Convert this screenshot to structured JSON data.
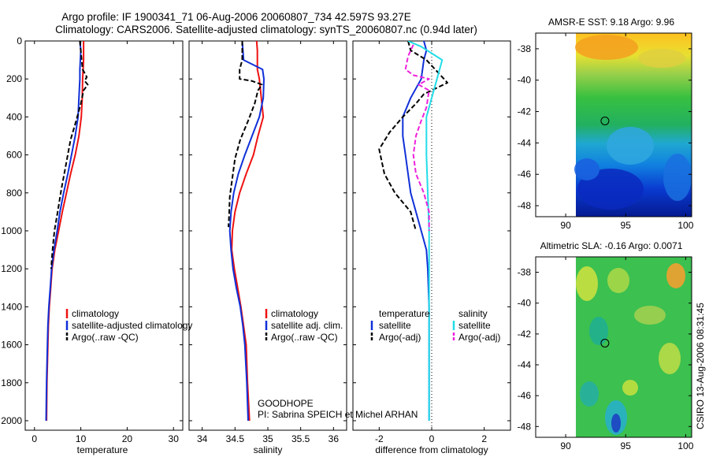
{
  "title": {
    "line1": "Argo profile: IF 1900341_71 06-Aug-2006 20060807_734 42.597S 93.27E",
    "line2": "Climatology: CARS2006. Satellite-adjusted climatology: synTS_20060807.nc (0.94d later)"
  },
  "colors": {
    "red": "#ee1111",
    "blue": "#1030d8",
    "black": "#000000",
    "cyan": "#22dde8",
    "magenta": "#ee22dd"
  },
  "chart_data": [
    {
      "type": "line",
      "name": "temperature-profile",
      "xlabel": "temperature",
      "xlim": [
        -2,
        32
      ],
      "ylim": [
        0,
        2050
      ],
      "xticks": [
        "0",
        "10",
        "20",
        "30"
      ],
      "yticks": [
        "0",
        "200",
        "400",
        "600",
        "800",
        "1000",
        "1200",
        "1400",
        "1600",
        "1800",
        "2000"
      ],
      "legend": [
        "climatology",
        "satellite-adjusted climatology",
        "Argo(..raw -QC)"
      ],
      "series": [
        {
          "name": "climatology",
          "color": "red",
          "dash": false,
          "points": [
            [
              10.6,
              0
            ],
            [
              10.6,
              50
            ],
            [
              10.6,
              100
            ],
            [
              10.5,
              150
            ],
            [
              10.4,
              200
            ],
            [
              10.3,
              300
            ],
            [
              10.1,
              400
            ],
            [
              9.6,
              500
            ],
            [
              8.8,
              600
            ],
            [
              7.8,
              700
            ],
            [
              6.9,
              800
            ],
            [
              6.0,
              900
            ],
            [
              5.2,
              1000
            ],
            [
              4.4,
              1100
            ],
            [
              3.8,
              1200
            ],
            [
              3.5,
              1300
            ],
            [
              3.2,
              1400
            ],
            [
              3.0,
              1500
            ],
            [
              2.9,
              1600
            ],
            [
              2.7,
              1800
            ],
            [
              2.6,
              2000
            ]
          ]
        },
        {
          "name": "satellite-adjusted climatology",
          "color": "blue",
          "dash": false,
          "points": [
            [
              9.8,
              0
            ],
            [
              10.0,
              50
            ],
            [
              9.9,
              100
            ],
            [
              9.8,
              150
            ],
            [
              9.8,
              200
            ],
            [
              9.6,
              300
            ],
            [
              9.4,
              400
            ],
            [
              8.8,
              500
            ],
            [
              8.0,
              600
            ],
            [
              7.2,
              700
            ],
            [
              6.3,
              800
            ],
            [
              5.5,
              900
            ],
            [
              4.9,
              1000
            ],
            [
              4.2,
              1100
            ],
            [
              3.7,
              1200
            ],
            [
              3.4,
              1300
            ],
            [
              3.1,
              1400
            ],
            [
              2.9,
              1500
            ],
            [
              2.8,
              1600
            ],
            [
              2.6,
              1800
            ],
            [
              2.5,
              2000
            ]
          ]
        },
        {
          "name": "Argo(..raw -QC)",
          "color": "black",
          "dash": true,
          "points": [
            [
              9.8,
              0
            ],
            [
              10.1,
              80
            ],
            [
              10.4,
              150
            ],
            [
              11.3,
              190
            ],
            [
              10.8,
              210
            ],
            [
              11.5,
              230
            ],
            [
              10.6,
              260
            ],
            [
              10.0,
              330
            ],
            [
              9.0,
              420
            ],
            [
              7.8,
              520
            ],
            [
              6.8,
              650
            ],
            [
              5.8,
              780
            ],
            [
              5.0,
              900
            ],
            [
              4.3,
              1000
            ],
            [
              3.9,
              1100
            ],
            [
              3.6,
              1200
            ]
          ]
        }
      ]
    },
    {
      "type": "line",
      "name": "salinity-profile",
      "xlabel": "salinity",
      "xlim": [
        33.8,
        36.2
      ],
      "ylim": [
        0,
        2050
      ],
      "xticks": [
        "34",
        "34.5",
        "35",
        "35.5",
        "36"
      ],
      "legend": [
        "climatology",
        "satellite adj. clim.",
        "Argo(..raw -QC)"
      ],
      "annotation": [
        "GOODHOPE",
        "PI: Sabrina SPEICH et Michel ARHAN"
      ],
      "series": [
        {
          "name": "climatology",
          "color": "red",
          "dash": false,
          "points": [
            [
              34.83,
              0
            ],
            [
              34.84,
              50
            ],
            [
              34.84,
              100
            ],
            [
              34.84,
              150
            ],
            [
              34.87,
              200
            ],
            [
              34.9,
              300
            ],
            [
              34.93,
              400
            ],
            [
              34.85,
              500
            ],
            [
              34.78,
              600
            ],
            [
              34.67,
              700
            ],
            [
              34.57,
              800
            ],
            [
              34.5,
              900
            ],
            [
              34.46,
              1000
            ],
            [
              34.45,
              1100
            ],
            [
              34.49,
              1200
            ],
            [
              34.54,
              1300
            ],
            [
              34.59,
              1400
            ],
            [
              34.63,
              1500
            ],
            [
              34.67,
              1600
            ],
            [
              34.69,
              1800
            ],
            [
              34.72,
              2000
            ]
          ]
        },
        {
          "name": "satellite adj. clim.",
          "color": "blue",
          "dash": false,
          "points": [
            [
              34.61,
              0
            ],
            [
              34.63,
              100
            ],
            [
              34.92,
              150
            ],
            [
              34.94,
              200
            ],
            [
              34.93,
              300
            ],
            [
              34.87,
              400
            ],
            [
              34.76,
              500
            ],
            [
              34.65,
              600
            ],
            [
              34.55,
              700
            ],
            [
              34.48,
              800
            ],
            [
              34.44,
              900
            ],
            [
              34.42,
              1000
            ],
            [
              34.44,
              1100
            ],
            [
              34.47,
              1200
            ],
            [
              34.52,
              1300
            ],
            [
              34.58,
              1400
            ],
            [
              34.62,
              1500
            ],
            [
              34.65,
              1600
            ],
            [
              34.68,
              1800
            ],
            [
              34.7,
              2000
            ]
          ]
        },
        {
          "name": "Argo(..raw -QC)",
          "color": "black",
          "dash": true,
          "points": [
            [
              34.61,
              0
            ],
            [
              34.61,
              100
            ],
            [
              34.57,
              150
            ],
            [
              34.57,
              200
            ],
            [
              34.75,
              210
            ],
            [
              34.91,
              230
            ],
            [
              34.85,
              260
            ],
            [
              34.8,
              330
            ],
            [
              34.7,
              420
            ],
            [
              34.58,
              520
            ],
            [
              34.5,
              620
            ],
            [
              34.46,
              720
            ],
            [
              34.42,
              820
            ],
            [
              34.41,
              920
            ],
            [
              34.4,
              980
            ]
          ]
        }
      ]
    },
    {
      "type": "line",
      "name": "difference-profile",
      "xlabel": "difference from climatology",
      "xlim": [
        -3,
        3
      ],
      "ylim": [
        0,
        2050
      ],
      "xticks": [
        "-2",
        "0",
        "2"
      ],
      "legend_left": [
        "temperature",
        "satellite",
        "Argo(-adj)"
      ],
      "legend_right": [
        "salinity",
        "satellite",
        "Argo(-adj)"
      ],
      "series": [
        {
          "name": "temperature satellite",
          "color": "blue",
          "dash": false,
          "points": [
            [
              -0.3,
              0
            ],
            [
              -0.2,
              50
            ],
            [
              -0.3,
              100
            ],
            [
              -0.4,
              200
            ],
            [
              -0.8,
              300
            ],
            [
              -1.1,
              400
            ],
            [
              -1.1,
              500
            ],
            [
              -1.0,
              600
            ],
            [
              -0.9,
              700
            ],
            [
              -0.8,
              800
            ],
            [
              -0.6,
              900
            ],
            [
              -0.4,
              1000
            ],
            [
              -0.2,
              1100
            ],
            [
              -0.15,
              1200
            ],
            [
              -0.1,
              1400
            ],
            [
              -0.1,
              1600
            ],
            [
              -0.1,
              1800
            ],
            [
              -0.1,
              2000
            ]
          ]
        },
        {
          "name": "temperature Argo(-adj)",
          "color": "black",
          "dash": true,
          "points": [
            [
              -0.9,
              0
            ],
            [
              -0.8,
              50
            ],
            [
              -0.2,
              100
            ],
            [
              0.6,
              220
            ],
            [
              -0.3,
              280
            ],
            [
              -0.6,
              330
            ],
            [
              -1.1,
              400
            ],
            [
              -1.6,
              480
            ],
            [
              -2.0,
              570
            ],
            [
              -1.8,
              700
            ],
            [
              -1.4,
              800
            ],
            [
              -0.8,
              900
            ],
            [
              -0.6,
              1000
            ]
          ]
        },
        {
          "name": "salinity satellite",
          "color": "cyan",
          "dash": false,
          "points": [
            [
              -0.9,
              0
            ],
            [
              -0.4,
              30
            ],
            [
              0.4,
              100
            ],
            [
              0.2,
              200
            ],
            [
              0.0,
              300
            ],
            [
              -0.2,
              400
            ],
            [
              -0.2,
              600
            ],
            [
              -0.15,
              800
            ],
            [
              -0.1,
              1000
            ],
            [
              -0.1,
              1200
            ],
            [
              -0.1,
              1400
            ],
            [
              -0.1,
              1600
            ],
            [
              -0.1,
              1800
            ],
            [
              -0.1,
              2000
            ]
          ]
        },
        {
          "name": "salinity Argo(-adj)",
          "color": "magenta",
          "dash": true,
          "points": [
            [
              -0.7,
              20
            ],
            [
              -0.9,
              80
            ],
            [
              -1.0,
              150
            ],
            [
              -0.7,
              180
            ],
            [
              -0.1,
              200
            ],
            [
              -0.5,
              230
            ],
            [
              -0.1,
              260
            ],
            [
              -0.2,
              350
            ],
            [
              -0.4,
              420
            ],
            [
              -0.6,
              500
            ],
            [
              -0.7,
              600
            ],
            [
              -0.6,
              700
            ],
            [
              -0.3,
              800
            ],
            [
              -0.1,
              900
            ],
            [
              -0.1,
              1000
            ]
          ]
        }
      ]
    },
    {
      "type": "heatmap",
      "name": "amsr-sst-map",
      "title": "AMSR-E SST: 9.18 Argo: 9.96",
      "xlim": [
        87.5,
        100.5
      ],
      "ylim": [
        -48.7,
        -37.0
      ],
      "xticks": [
        "90",
        "95",
        "100"
      ],
      "yticks": [
        "-38",
        "-40",
        "-42",
        "-44",
        "-46",
        "-48"
      ],
      "data_xlim": [
        90,
        100.3
      ],
      "marker": {
        "lon": 93.27,
        "lat": -42.597
      }
    },
    {
      "type": "heatmap",
      "name": "altimetric-sla-map",
      "title": "Altimetric SLA: -0.16 Argo: 0.0071",
      "xlim": [
        87.5,
        100.5
      ],
      "ylim": [
        -48.7,
        -37.0
      ],
      "xticks": [
        "90",
        "95",
        "100"
      ],
      "yticks": [
        "-38",
        "-40",
        "-42",
        "-44",
        "-46",
        "-48"
      ],
      "data_xlim": [
        90,
        100.3
      ],
      "marker": {
        "lon": 93.27,
        "lat": -42.597
      }
    }
  ],
  "side_label": "CSIRO 13-Aug-2006 08:31:45"
}
